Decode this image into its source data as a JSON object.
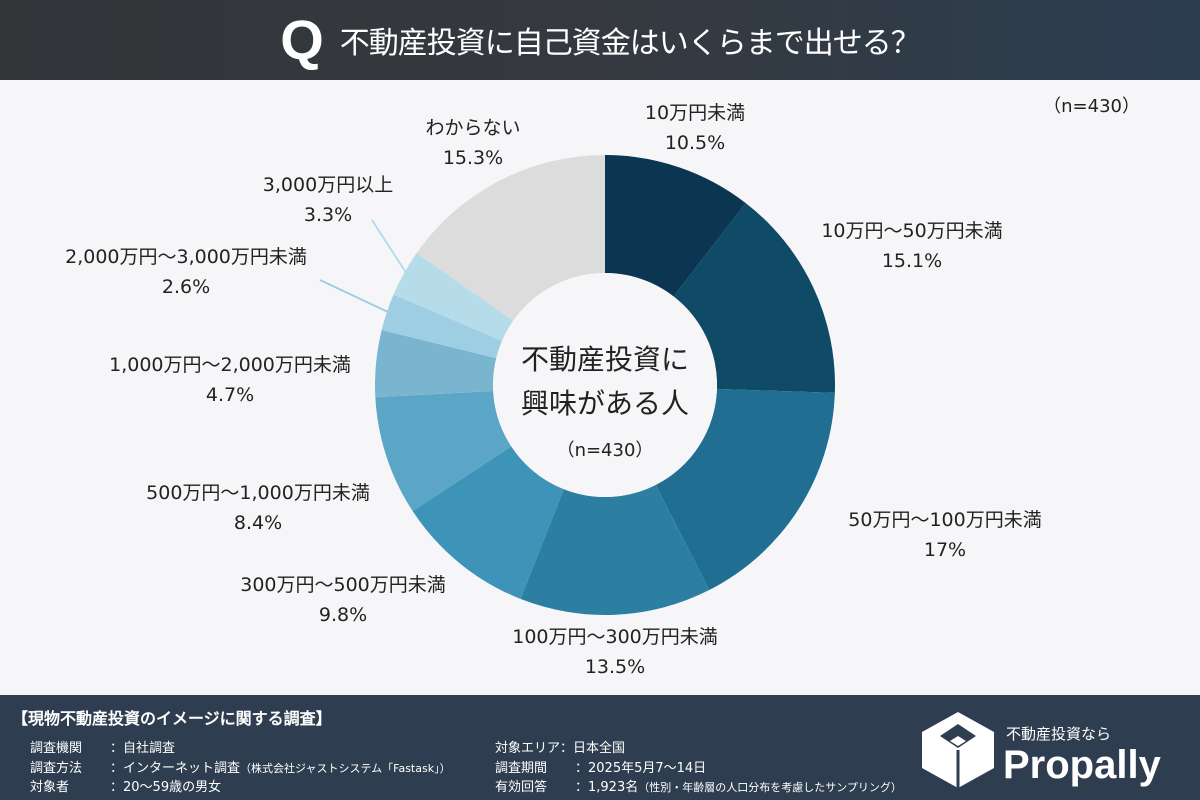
{
  "header": {
    "q_mark": "Q",
    "title": "不動産投資に自己資金はいくらまで出せる？"
  },
  "sample_note": "（n=430）",
  "chart_data": {
    "type": "pie",
    "variant": "donut",
    "start": "top, clockwise",
    "center_label": [
      "不動産投資に",
      "興味がある人"
    ],
    "center_note": "（n=430）",
    "categories": [
      "10万円未満",
      "10万円～50万円未満",
      "50万円～100万円未満",
      "100万円～300万円未満",
      "300万円～500万円未満",
      "500万円～1,000万円未満",
      "1,000万円～2,000万円未満",
      "2,000万円～3,000万円未満",
      "3,000万円以上",
      "わからない"
    ],
    "values": [
      10.5,
      15.1,
      17,
      13.5,
      9.8,
      8.4,
      4.7,
      2.6,
      3.3,
      15.3
    ],
    "value_labels": [
      "10.5%",
      "15.1%",
      "17%",
      "13.5%",
      "9.8%",
      "8.4%",
      "4.7%",
      "2.6%",
      "3.3%",
      "15.3%"
    ],
    "unit": "%",
    "colors": [
      "#0b3550",
      "#0f4a66",
      "#206f92",
      "#2c7fa1",
      "#3d94b8",
      "#5ba6c6",
      "#79b5cf",
      "#9ecee3",
      "#b6dcea",
      "#dcdcdd"
    ]
  },
  "footer": {
    "title": "【現物不動産投資のイメージに関する調査】",
    "rows": [
      {
        "k": "調査機関",
        "v": "：自社調査",
        "note": ""
      },
      {
        "k": "調査方法",
        "v": "：インターネット調査",
        "note": "（株式会社ジャストシステム「Fastask」）"
      },
      {
        "k": "対象者",
        "v": "：20～59歳の男女",
        "note": ""
      },
      {
        "k": "対象エリア",
        "v": "：日本全国",
        "note": ""
      },
      {
        "k": "調査期間",
        "v": "：2025年5月7～14日",
        "note": ""
      },
      {
        "k": "有効回答",
        "v": "：1,923名",
        "note": "（性別・年齢層の人口分布を考慮したサンプリング）"
      }
    ],
    "logo_sub": "不動産投資なら",
    "logo_name": "Propally"
  }
}
